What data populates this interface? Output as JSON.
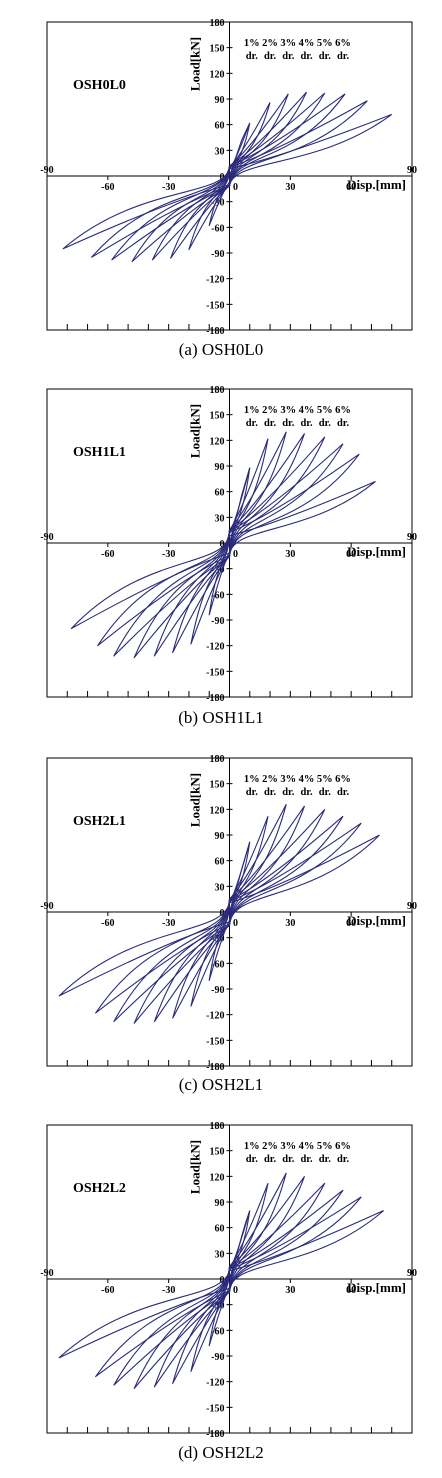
{
  "chart_data": [
    {
      "type": "line",
      "specimen": "OSH0L0",
      "caption": "(a) OSH0L0",
      "xlabel": "Disp.[mm]",
      "ylabel": "Load[kN]",
      "xlim": [
        -90,
        90
      ],
      "ylim": [
        -180,
        180
      ],
      "x_ticks": [
        "-90",
        "-60",
        "-30",
        "0",
        "30",
        "60",
        "90"
      ],
      "y_ticks": [
        "180",
        "150",
        "120",
        "90",
        "60",
        "30",
        "0",
        "-30",
        "-60",
        "-90",
        "-120",
        "-150",
        "-180"
      ],
      "drift_labels": [
        "1%",
        "2%",
        "3%",
        "4%",
        "5%",
        "6%"
      ],
      "drift_sub": "dr.",
      "drift_x": [
        11,
        20,
        29,
        38,
        47,
        56
      ],
      "line_color": "#2b2b7a",
      "grid": false,
      "series": [
        {
          "values": [
            [
              0,
              0
            ],
            [
              2,
              14
            ],
            [
              4,
              28
            ],
            [
              6,
              42
            ],
            [
              8,
              52
            ],
            [
              10,
              62
            ]
          ]
        },
        {
          "values": [
            [
              10,
              62
            ],
            [
              -10,
              -58
            ],
            [
              10,
              62
            ]
          ]
        },
        {
          "values": [
            [
              20,
              86
            ],
            [
              -20,
              -86
            ],
            [
              20,
              86
            ]
          ]
        },
        {
          "values": [
            [
              29,
              96
            ],
            [
              -29,
              -96
            ],
            [
              29,
              96
            ]
          ]
        },
        {
          "values": [
            [
              38,
              98
            ],
            [
              -38,
              -98
            ],
            [
              38,
              98
            ]
          ]
        },
        {
          "values": [
            [
              47,
              97
            ],
            [
              -48,
              -100
            ],
            [
              47,
              97
            ]
          ]
        },
        {
          "values": [
            [
              57,
              96
            ],
            [
              -58,
              -98
            ],
            [
              57,
              96
            ]
          ]
        },
        {
          "values": [
            [
              68,
              88
            ],
            [
              -68,
              -95
            ],
            [
              68,
              88
            ]
          ]
        },
        {
          "values": [
            [
              80,
              72
            ],
            [
              -82,
              -85
            ],
            [
              80,
              72
            ]
          ]
        }
      ]
    },
    {
      "type": "line",
      "specimen": "OSH1L1",
      "caption": "(b) OSH1L1",
      "xlabel": "Disp.[mm]",
      "ylabel": "Load[kN]",
      "xlim": [
        -90,
        90
      ],
      "ylim": [
        -180,
        180
      ],
      "x_ticks": [
        "-90",
        "-60",
        "-30",
        "0",
        "30",
        "60",
        "90"
      ],
      "y_ticks": [
        "180",
        "150",
        "120",
        "90",
        "60",
        "30",
        "0",
        "-30",
        "-60",
        "-90",
        "-120",
        "-150",
        "-180"
      ],
      "drift_labels": [
        "1%",
        "2%",
        "3%",
        "4%",
        "5%",
        "6%"
      ],
      "drift_sub": "dr.",
      "drift_x": [
        11,
        20,
        29,
        38,
        47,
        56
      ],
      "line_color": "#2b2b7a",
      "grid": false,
      "series": [
        {
          "values": [
            [
              0,
              0
            ],
            [
              2,
              18
            ],
            [
              4,
              36
            ],
            [
              6,
              56
            ],
            [
              8,
              72
            ],
            [
              10,
              88
            ]
          ]
        },
        {
          "values": [
            [
              10,
              88
            ],
            [
              -10,
              -84
            ],
            [
              10,
              88
            ]
          ]
        },
        {
          "values": [
            [
              19,
              122
            ],
            [
              -19,
              -118
            ],
            [
              19,
              122
            ]
          ]
        },
        {
          "values": [
            [
              28,
              130
            ],
            [
              -28,
              -128
            ],
            [
              28,
              130
            ]
          ]
        },
        {
          "values": [
            [
              37,
              128
            ],
            [
              -37,
              -132
            ],
            [
              37,
              128
            ]
          ]
        },
        {
          "values": [
            [
              47,
              124
            ],
            [
              -47,
              -134
            ],
            [
              47,
              124
            ]
          ]
        },
        {
          "values": [
            [
              56,
              116
            ],
            [
              -57,
              -132
            ],
            [
              56,
              116
            ]
          ]
        },
        {
          "values": [
            [
              64,
              104
            ],
            [
              -65,
              -120
            ],
            [
              64,
              104
            ]
          ]
        },
        {
          "values": [
            [
              72,
              72
            ],
            [
              -78,
              -100
            ],
            [
              72,
              72
            ]
          ]
        }
      ]
    },
    {
      "type": "line",
      "specimen": "OSH2L1",
      "caption": "(c) OSH2L1",
      "xlabel": "Disp.[mm]",
      "ylabel": "Load[kN]",
      "xlim": [
        -90,
        90
      ],
      "ylim": [
        -180,
        180
      ],
      "x_ticks": [
        "-90",
        "-60",
        "-30",
        "0",
        "30",
        "60",
        "90"
      ],
      "y_ticks": [
        "180",
        "150",
        "120",
        "90",
        "60",
        "30",
        "0",
        "-30",
        "-60",
        "-90",
        "-120",
        "-150",
        "-180"
      ],
      "drift_labels": [
        "1%",
        "2%",
        "3%",
        "4%",
        "5%",
        "6%"
      ],
      "drift_sub": "dr.",
      "drift_x": [
        11,
        20,
        29,
        38,
        47,
        56
      ],
      "line_color": "#2b2b7a",
      "grid": false,
      "series": [
        {
          "values": [
            [
              0,
              0
            ],
            [
              2,
              16
            ],
            [
              4,
              32
            ],
            [
              6,
              50
            ],
            [
              8,
              66
            ],
            [
              10,
              82
            ]
          ]
        },
        {
          "values": [
            [
              10,
              82
            ],
            [
              -10,
              -80
            ],
            [
              10,
              82
            ]
          ]
        },
        {
          "values": [
            [
              19,
              112
            ],
            [
              -19,
              -110
            ],
            [
              19,
              112
            ]
          ]
        },
        {
          "values": [
            [
              28,
              126
            ],
            [
              -28,
              -124
            ],
            [
              28,
              126
            ]
          ]
        },
        {
          "values": [
            [
              37,
              124
            ],
            [
              -37,
              -128
            ],
            [
              37,
              124
            ]
          ]
        },
        {
          "values": [
            [
              47,
              120
            ],
            [
              -47,
              -130
            ],
            [
              47,
              120
            ]
          ]
        },
        {
          "values": [
            [
              56,
              112
            ],
            [
              -57,
              -128
            ],
            [
              56,
              112
            ]
          ]
        },
        {
          "values": [
            [
              65,
              104
            ],
            [
              -66,
              -118
            ],
            [
              65,
              104
            ]
          ]
        },
        {
          "values": [
            [
              74,
              90
            ],
            [
              -84,
              -98
            ],
            [
              74,
              90
            ]
          ]
        }
      ]
    },
    {
      "type": "line",
      "specimen": "OSH2L2",
      "caption": "(d) OSH2L2",
      "xlabel": "Disp.[mm]",
      "ylabel": "Load[kN]",
      "xlim": [
        -90,
        90
      ],
      "ylim": [
        -180,
        180
      ],
      "x_ticks": [
        "-90",
        "-60",
        "-30",
        "0",
        "30",
        "60",
        "90"
      ],
      "y_ticks": [
        "180",
        "150",
        "120",
        "90",
        "60",
        "30",
        "0",
        "-30",
        "-60",
        "-90",
        "-120",
        "-150",
        "-180"
      ],
      "drift_labels": [
        "1%",
        "2%",
        "3%",
        "4%",
        "5%",
        "6%"
      ],
      "drift_sub": "dr.",
      "drift_x": [
        11,
        20,
        29,
        38,
        47,
        56
      ],
      "line_color": "#2b2b7a",
      "grid": false,
      "series": [
        {
          "values": [
            [
              0,
              0
            ],
            [
              2,
              16
            ],
            [
              4,
              32
            ],
            [
              6,
              50
            ],
            [
              8,
              66
            ],
            [
              10,
              80
            ]
          ]
        },
        {
          "values": [
            [
              10,
              80
            ],
            [
              -10,
              -78
            ],
            [
              10,
              80
            ]
          ]
        },
        {
          "values": [
            [
              19,
              112
            ],
            [
              -19,
              -108
            ],
            [
              19,
              112
            ]
          ]
        },
        {
          "values": [
            [
              28,
              124
            ],
            [
              -28,
              -122
            ],
            [
              28,
              124
            ]
          ]
        },
        {
          "values": [
            [
              37,
              120
            ],
            [
              -37,
              -126
            ],
            [
              37,
              120
            ]
          ]
        },
        {
          "values": [
            [
              47,
              112
            ],
            [
              -47,
              -128
            ],
            [
              47,
              112
            ]
          ]
        },
        {
          "values": [
            [
              56,
              104
            ],
            [
              -57,
              -124
            ],
            [
              56,
              104
            ]
          ]
        },
        {
          "values": [
            [
              65,
              96
            ],
            [
              -66,
              -114
            ],
            [
              65,
              96
            ]
          ]
        },
        {
          "values": [
            [
              76,
              80
            ],
            [
              -84,
              -92
            ],
            [
              76,
              80
            ]
          ]
        }
      ]
    }
  ]
}
